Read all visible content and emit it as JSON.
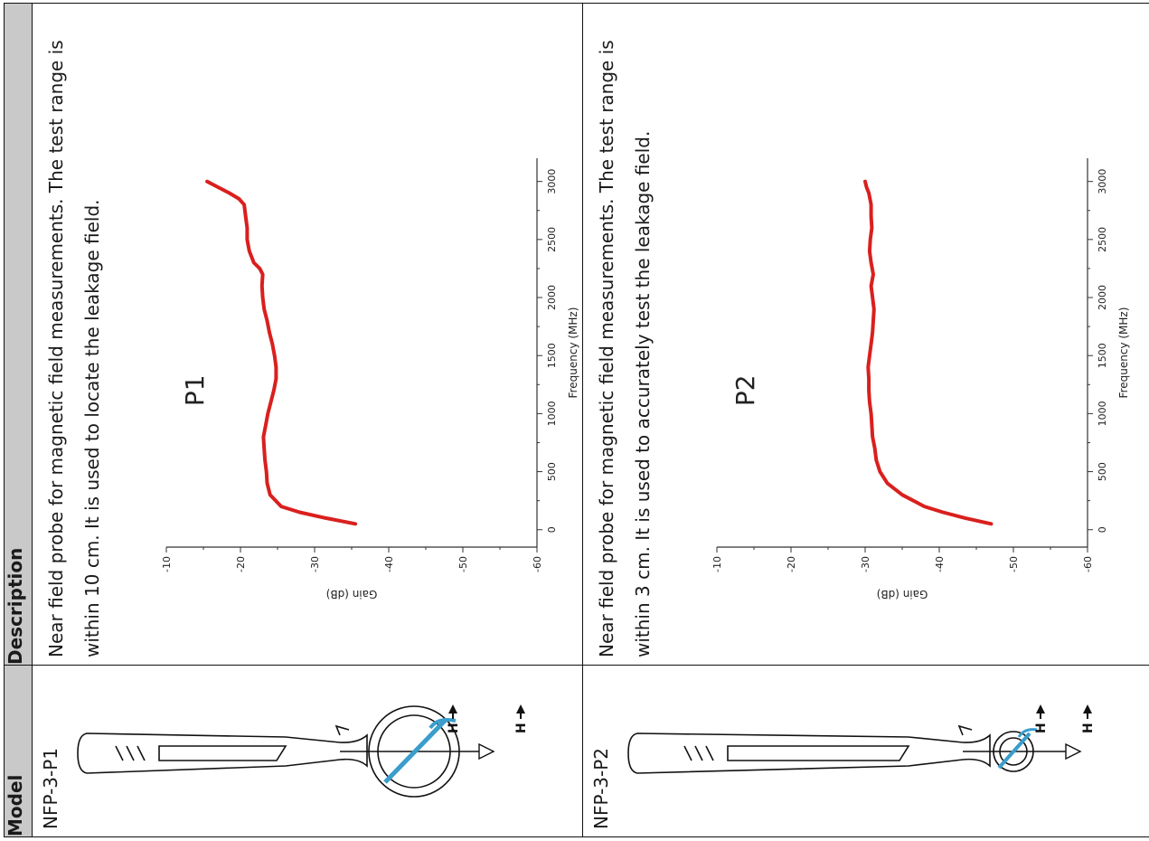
{
  "table": {
    "header_model": "Model",
    "header_description": "Description",
    "rows": [
      {
        "model": "NFP-3-P1",
        "description": "Near field probe for magnetic field measurements. The test range is within 10 cm. It is used to locate the leakage field.",
        "probe_label_1": "H",
        "probe_label_2": "H"
      },
      {
        "model": "NFP-3-P2",
        "description": "Near field probe for magnetic field measurements. The test range is within 3 cm. It is used to accurately test the leakage field.",
        "probe_label_1": "H",
        "probe_label_2": "H"
      }
    ]
  },
  "chart_data": [
    {
      "type": "line",
      "title": "P1",
      "xlabel": "Frequency (MHz)",
      "ylabel": "Gain (dB)",
      "xlim": [
        -150,
        3200
      ],
      "ylim": [
        -60,
        -10
      ],
      "x_ticks": [
        "0",
        "500",
        "1000",
        "1500",
        "2000",
        "2500",
        "3000"
      ],
      "y_ticks": [
        "-10",
        "-20",
        "-30",
        "-40",
        "-50",
        "-60"
      ],
      "line_color": "#d9201e",
      "series": [
        {
          "x": [
            50,
            100,
            150,
            200,
            300,
            400,
            500,
            600,
            700,
            800,
            900,
            1000,
            1100,
            1200,
            1300,
            1400,
            1500,
            1600,
            1700,
            1800,
            1900,
            2000,
            2100,
            2200,
            2250,
            2300,
            2400,
            2500,
            2600,
            2700,
            2800,
            2850,
            2900,
            2950,
            3000
          ],
          "y": [
            -35.5,
            -31.5,
            -28.0,
            -25.5,
            -24.0,
            -23.6,
            -23.5,
            -23.3,
            -23.2,
            -23.1,
            -23.4,
            -23.7,
            -24.1,
            -24.5,
            -24.8,
            -24.8,
            -24.6,
            -24.3,
            -23.9,
            -23.6,
            -23.2,
            -23.0,
            -22.9,
            -23.0,
            -22.6,
            -21.8,
            -21.2,
            -20.9,
            -20.9,
            -20.7,
            -20.5,
            -19.8,
            -18.5,
            -17.0,
            -15.5
          ]
        }
      ]
    },
    {
      "type": "line",
      "title": "P2",
      "xlabel": "Frequency (MHz)",
      "ylabel": "Gain (dB)",
      "xlim": [
        -150,
        3200
      ],
      "ylim": [
        -60,
        -10
      ],
      "x_ticks": [
        "0",
        "500",
        "1000",
        "1500",
        "2000",
        "2500",
        "3000"
      ],
      "y_ticks": [
        "-10",
        "-20",
        "-30",
        "-40",
        "-50",
        "-60"
      ],
      "line_color": "#d9201e",
      "series": [
        {
          "x": [
            50,
            100,
            150,
            200,
            300,
            400,
            500,
            600,
            700,
            800,
            900,
            1000,
            1100,
            1200,
            1300,
            1400,
            1500,
            1600,
            1700,
            1800,
            1900,
            2000,
            2100,
            2200,
            2300,
            2400,
            2500,
            2600,
            2700,
            2800,
            2900,
            2950,
            3000
          ],
          "y": [
            -47.0,
            -43.5,
            -40.5,
            -38.0,
            -35.0,
            -33.0,
            -32.0,
            -31.5,
            -31.3,
            -31.0,
            -30.9,
            -30.8,
            -30.6,
            -30.5,
            -30.5,
            -30.4,
            -30.6,
            -30.8,
            -31.0,
            -31.1,
            -31.2,
            -31.0,
            -30.8,
            -31.1,
            -30.8,
            -30.6,
            -30.7,
            -30.9,
            -30.8,
            -30.8,
            -30.5,
            -30.2,
            -30.0
          ]
        }
      ]
    }
  ]
}
